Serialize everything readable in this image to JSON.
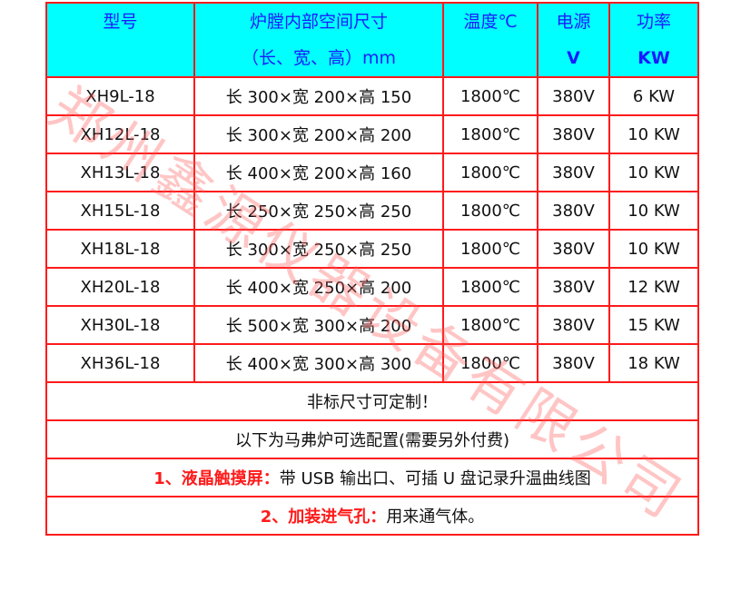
{
  "header": {
    "model": "型号",
    "size_line1": "炉膛内部空间尺寸",
    "size_line2": "（长、宽、高）mm",
    "temp": "温度℃",
    "power_src": "电源",
    "power_src_unit": "V",
    "power": "功率",
    "power_unit": "KW"
  },
  "rows": [
    {
      "model": "XH9L-18",
      "size": "长 300×宽 200×高 150",
      "temp": "1800℃",
      "voltage": "380V",
      "power": "6 KW"
    },
    {
      "model": "XH12L-18",
      "size": "长 300×宽 200×高 200",
      "temp": "1800℃",
      "voltage": "380V",
      "power": "10 KW"
    },
    {
      "model": "XH13L-18",
      "size": "长 400×宽 200×高 160",
      "temp": "1800℃",
      "voltage": "380V",
      "power": "10 KW"
    },
    {
      "model": "XH15L-18",
      "size": "长 250×宽 250×高 250",
      "temp": "1800℃",
      "voltage": "380V",
      "power": "10 KW"
    },
    {
      "model": "XH18L-18",
      "size": "长 300×宽 250×高 250",
      "temp": "1800℃",
      "voltage": "380V",
      "power": "10 KW"
    },
    {
      "model": "XH20L-18",
      "size": "长 400×宽 250×高 200",
      "temp": "1800℃",
      "voltage": "380V",
      "power": "12 KW"
    },
    {
      "model": "XH30L-18",
      "size": "长 500×宽 300×高 200",
      "temp": "1800℃",
      "voltage": "380V",
      "power": "15 KW"
    },
    {
      "model": "XH36L-18",
      "size": "长 400×宽 300×高 300",
      "temp": "1800℃",
      "voltage": "380V",
      "power": "18 KW"
    }
  ],
  "notes": {
    "custom": "非标尺寸可定制！",
    "options_title": "以下为马弗炉可选配置(需要另外付费)",
    "opt1_label": "1、液晶触摸屏：",
    "opt1_text": "带 USB 输出口、可插 U 盘记录升温曲线图",
    "opt2_label": "2、加装进气孔：",
    "opt2_text": "用来通气体。"
  },
  "watermark": "郑州鑫源仪器设备有限公司",
  "colors": {
    "header_bg": "#00ffff",
    "header_text": "#1a1aff",
    "border": "#ff1a1a"
  }
}
